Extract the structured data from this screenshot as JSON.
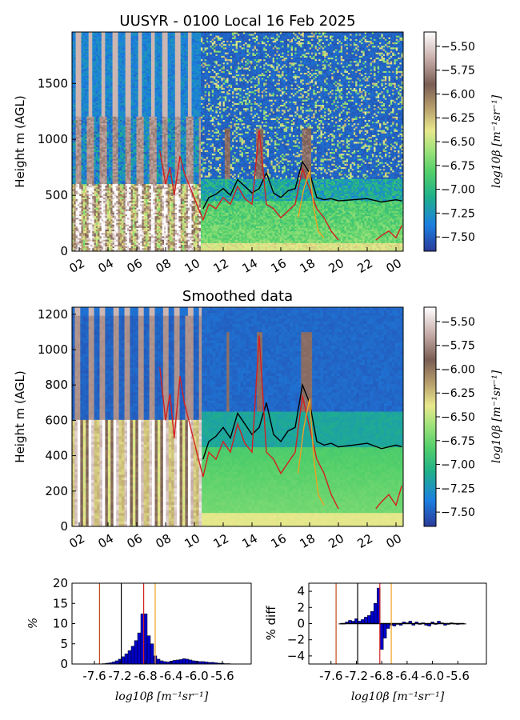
{
  "colors": {
    "colormap": [
      "#2b3a99",
      "#1c7fe0",
      "#1fb08a",
      "#52cf6a",
      "#9ee27a",
      "#e8e88c",
      "#b49a6a",
      "#7a5e55",
      "#c8aeaa",
      "#ffffff"
    ],
    "red": "#d42020",
    "orange": "#f0a020",
    "black": "#000000",
    "bar": "#0000cc",
    "brown": "#c04a1a"
  },
  "chart_data": [
    {
      "type": "heatmap",
      "title": "UUSYR - 0100 Local 16 Feb 2025",
      "ylabel": "Height m (AGL)",
      "xlabel": "",
      "xticks": [
        "02",
        "04",
        "06",
        "08",
        "10",
        "12",
        "14",
        "16",
        "18",
        "20",
        "22",
        "00"
      ],
      "xrange_hours": [
        1.5,
        24.5
      ],
      "ylim": [
        0,
        1960
      ],
      "yticks": [
        0,
        500,
        1000,
        1500
      ],
      "colorbar": {
        "ticks": [
          "-5.50",
          "-5.75",
          "-6.00",
          "-6.25",
          "-6.50",
          "-6.75",
          "-7.00",
          "-7.25",
          "-7.50"
        ],
        "label": "log10β [m⁻¹sr⁻¹]",
        "range": [
          -7.65,
          -5.35
        ]
      },
      "lines": [
        {
          "color": "black",
          "x": [
            10.6,
            11.0,
            11.5,
            12.0,
            12.5,
            13.0,
            13.5,
            14.0,
            14.5,
            15.0,
            15.5,
            16.0,
            16.5,
            17.0,
            17.5,
            18.0,
            18.5,
            19.0,
            19.5,
            20.0,
            21.0,
            22.0,
            23.0,
            24.0,
            24.4
          ],
          "y": [
            380,
            480,
            510,
            560,
            500,
            640,
            580,
            520,
            560,
            700,
            520,
            480,
            540,
            560,
            800,
            700,
            480,
            460,
            470,
            450,
            460,
            470,
            440,
            460,
            450
          ]
        },
        {
          "color": "red",
          "x": [
            7.6,
            8.0,
            8.3,
            8.6,
            9.0,
            9.3,
            10.6,
            11.0,
            11.5,
            12.0,
            12.5,
            13.0,
            13.5,
            14.0,
            14.5,
            15.0,
            15.5,
            16.0,
            16.5,
            17.0,
            17.5,
            18.0,
            18.5,
            19.0,
            19.5,
            20.0,
            22.6,
            23.0,
            23.5,
            24.0,
            24.4
          ],
          "y": [
            900,
            600,
            750,
            500,
            850,
            700,
            280,
            420,
            380,
            480,
            420,
            580,
            470,
            420,
            1080,
            420,
            380,
            300,
            360,
            420,
            740,
            560,
            380,
            300,
            180,
            100,
            100,
            140,
            180,
            120,
            230
          ]
        },
        {
          "color": "orange",
          "x": [
            17.2,
            17.6,
            18.0,
            18.3,
            18.6,
            19.0
          ],
          "y": [
            300,
            560,
            720,
            380,
            180,
            120
          ]
        }
      ]
    },
    {
      "type": "heatmap",
      "title": "Smoothed data",
      "ylabel": "Height m (AGL)",
      "xlabel": "",
      "xticks": [
        "02",
        "04",
        "06",
        "08",
        "10",
        "12",
        "14",
        "16",
        "18",
        "20",
        "22",
        "00"
      ],
      "xrange_hours": [
        1.5,
        24.5
      ],
      "ylim": [
        0,
        1240
      ],
      "yticks": [
        0,
        200,
        400,
        600,
        800,
        1000,
        1200
      ],
      "colorbar": {
        "ticks": [
          "-5.50",
          "-5.75",
          "-6.00",
          "-6.25",
          "-6.50",
          "-6.75",
          "-7.00",
          "-7.25",
          "-7.50"
        ],
        "label": "log10β [m⁻¹sr⁻¹]",
        "range": [
          -7.65,
          -5.35
        ]
      },
      "lines": [
        {
          "color": "black",
          "x": [
            10.6,
            11.0,
            11.5,
            12.0,
            12.5,
            13.0,
            13.5,
            14.0,
            14.5,
            15.0,
            15.5,
            16.0,
            16.5,
            17.0,
            17.5,
            18.0,
            18.5,
            19.0,
            19.5,
            20.0,
            21.0,
            22.0,
            23.0,
            24.0,
            24.4
          ],
          "y": [
            380,
            480,
            510,
            560,
            500,
            640,
            580,
            520,
            560,
            700,
            520,
            480,
            540,
            560,
            800,
            700,
            480,
            460,
            470,
            450,
            460,
            470,
            440,
            460,
            450
          ]
        },
        {
          "color": "red",
          "x": [
            7.6,
            8.0,
            8.3,
            8.6,
            9.0,
            9.3,
            10.6,
            11.0,
            11.5,
            12.0,
            12.5,
            13.0,
            13.5,
            14.0,
            14.5,
            15.0,
            15.5,
            16.0,
            16.5,
            17.0,
            17.5,
            18.0,
            18.5,
            19.0,
            19.5,
            20.0,
            22.6,
            23.0,
            23.5,
            24.0,
            24.4
          ],
          "y": [
            900,
            600,
            750,
            500,
            850,
            700,
            280,
            420,
            380,
            480,
            420,
            580,
            470,
            420,
            1080,
            420,
            380,
            300,
            360,
            420,
            740,
            560,
            380,
            300,
            180,
            100,
            100,
            140,
            180,
            120,
            230
          ]
        },
        {
          "color": "orange",
          "x": [
            17.2,
            17.6,
            18.0,
            18.3,
            18.6,
            19.0
          ],
          "y": [
            300,
            560,
            720,
            380,
            180,
            120
          ]
        }
      ]
    },
    {
      "type": "bar",
      "title": "",
      "xlabel": "log10β [m⁻¹sr⁻¹]",
      "ylabel": "%",
      "xlim": [
        -7.95,
        -5.15
      ],
      "ylim": [
        0,
        20
      ],
      "xticks": [
        "-7.6",
        "-7.2",
        "-6.8",
        "-6.4",
        "-6.0",
        "-5.6"
      ],
      "yticks": [
        "0",
        "5",
        "10",
        "15",
        "20"
      ],
      "x": [
        -7.45,
        -7.4,
        -7.35,
        -7.3,
        -7.25,
        -7.2,
        -7.15,
        -7.1,
        -7.05,
        -7.0,
        -6.95,
        -6.9,
        -6.85,
        -6.8,
        -6.75,
        -6.7,
        -6.65,
        -6.6,
        -6.55,
        -6.5,
        -6.45,
        -6.4,
        -6.35,
        -6.3,
        -6.25,
        -6.2,
        -6.15,
        -6.1,
        -6.05,
        -6.0,
        -5.95,
        -5.9,
        -5.85,
        -5.8,
        -5.75,
        -5.7,
        -5.65,
        -5.6,
        -5.55,
        -5.5
      ],
      "values": [
        0.1,
        0.2,
        0.3,
        0.5,
        0.8,
        1.2,
        1.8,
        2.5,
        3.3,
        4.4,
        5.8,
        7.7,
        12.4,
        12.4,
        7.0,
        5.0,
        2.0,
        1.2,
        0.8,
        0.6,
        0.5,
        0.7,
        0.9,
        1.0,
        1.1,
        1.3,
        1.2,
        1.0,
        0.8,
        0.7,
        0.6,
        0.6,
        0.5,
        0.4,
        0.4,
        0.3,
        0.2,
        0.2,
        0.1,
        0.1
      ],
      "vlines": [
        {
          "x": -7.52,
          "color": "brown"
        },
        {
          "x": -7.18,
          "color": "black"
        },
        {
          "x": -6.83,
          "color": "red"
        },
        {
          "x": -6.65,
          "color": "orange"
        }
      ]
    },
    {
      "type": "bar",
      "title": "",
      "xlabel": "log10β [m⁻¹sr⁻¹]",
      "ylabel": "% diff",
      "xlim": [
        -7.95,
        -5.15
      ],
      "ylim": [
        -5,
        5
      ],
      "xticks": [
        "-7.6",
        "-7.2",
        "-6.8",
        "-6.4",
        "-6.0",
        "-5.6"
      ],
      "yticks": [
        "4",
        "2",
        "0",
        "−2",
        "−4"
      ],
      "x": [
        -7.45,
        -7.4,
        -7.35,
        -7.3,
        -7.25,
        -7.2,
        -7.15,
        -7.1,
        -7.05,
        -7.0,
        -6.95,
        -6.9,
        -6.85,
        -6.8,
        -6.75,
        -6.7,
        -6.65,
        -6.6,
        -6.55,
        -6.5,
        -6.45,
        -6.4,
        -6.35,
        -6.3,
        -6.25,
        -6.2,
        -6.15,
        -6.1,
        -6.05,
        -6.0,
        -5.95,
        -5.9,
        -5.85,
        -5.8,
        -5.75,
        -5.7,
        -5.65,
        -5.6,
        -5.55,
        -5.5
      ],
      "values": [
        0.0,
        0.0,
        0.2,
        0.4,
        0.3,
        0.6,
        0.3,
        0.5,
        0.8,
        1.0,
        1.5,
        2.5,
        4.4,
        -3.2,
        -1.8,
        -0.6,
        -0.2,
        -0.3,
        -0.1,
        -0.2,
        0.2,
        0.1,
        0.3,
        -0.2,
        0.2,
        -0.1,
        0.1,
        -0.2,
        -0.3,
        0.2,
        -0.1,
        0.3,
        0.1,
        -0.2,
        -0.1,
        0.1,
        0.0,
        -0.1,
        0.0,
        0.0
      ],
      "vlines": [
        {
          "x": -7.52,
          "color": "brown"
        },
        {
          "x": -7.18,
          "color": "black"
        },
        {
          "x": -6.83,
          "color": "red"
        },
        {
          "x": -6.65,
          "color": "orange"
        }
      ]
    }
  ]
}
